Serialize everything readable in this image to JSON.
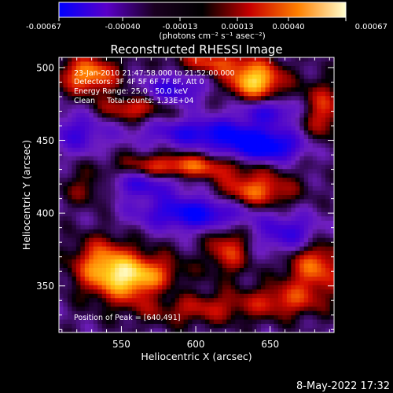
{
  "chart_data": {
    "type": "heatmap",
    "title": "Reconstructed RHESSI Image",
    "xlabel": "Heliocentric X (arcsec)",
    "ylabel": "Heliocentric Y (arcsec)",
    "xlim": [
      508,
      693
    ],
    "ylim": [
      318,
      507
    ],
    "xticks": [
      550,
      600,
      650
    ],
    "yticks": [
      350,
      400,
      450,
      500
    ],
    "colorbar": {
      "ticks": [
        "-0.00067",
        "-0.00040",
        "-0.00013",
        "0.00013",
        "0.00040",
        "0.00067"
      ],
      "unit_label": "(photons cm⁻² s⁻¹ asec⁻²)",
      "stops": [
        "#0000ff",
        "#5a00c8",
        "#1a0020",
        "#000000",
        "#c80000",
        "#ff8000",
        "#ffffd0"
      ]
    },
    "annotations": [
      "23-Jan-2010 21:47:58.000 to 21:52:00.000",
      "Detectors: 3F 4F 5F 6F 7F 8F, Att 0",
      "Energy Range: 25.0 - 50.0 keV",
      "Clean     Total counts: 1.33E+04"
    ],
    "peak_label": "Position of Peak = [640,491]",
    "sources": [
      {
        "x": 560,
        "y": 355,
        "amp": 1.0,
        "sx": 20,
        "sy": 11
      },
      {
        "x": 537,
        "y": 367,
        "amp": 0.6,
        "sx": 14,
        "sy": 12
      },
      {
        "x": 640,
        "y": 491,
        "amp": 1.0,
        "sx": 13,
        "sy": 9
      },
      {
        "x": 610,
        "y": 504,
        "amp": 0.55,
        "sx": 18,
        "sy": 6
      },
      {
        "x": 528,
        "y": 495,
        "amp": 0.8,
        "sx": 14,
        "sy": 9
      },
      {
        "x": 558,
        "y": 472,
        "amp": 0.55,
        "sx": 16,
        "sy": 6
      },
      {
        "x": 685,
        "y": 470,
        "amp": 0.55,
        "sx": 10,
        "sy": 14
      },
      {
        "x": 590,
        "y": 432,
        "amp": 0.7,
        "sx": 28,
        "sy": 6
      },
      {
        "x": 640,
        "y": 415,
        "amp": 0.7,
        "sx": 18,
        "sy": 9
      },
      {
        "x": 622,
        "y": 375,
        "amp": 0.55,
        "sx": 10,
        "sy": 12
      },
      {
        "x": 680,
        "y": 365,
        "amp": 0.7,
        "sx": 14,
        "sy": 14
      },
      {
        "x": 530,
        "y": 418,
        "amp": 0.45,
        "sx": 14,
        "sy": 8
      },
      {
        "x": 600,
        "y": 335,
        "amp": 0.45,
        "sx": 30,
        "sy": 8
      },
      {
        "x": 660,
        "y": 340,
        "amp": 0.45,
        "sx": 18,
        "sy": 8
      },
      {
        "x": 610,
        "y": 455,
        "amp": -0.7,
        "sx": 30,
        "sy": 7
      },
      {
        "x": 645,
        "y": 445,
        "amp": -0.9,
        "sx": 18,
        "sy": 7
      },
      {
        "x": 600,
        "y": 400,
        "amp": -0.8,
        "sx": 26,
        "sy": 8
      },
      {
        "x": 560,
        "y": 420,
        "amp": -0.55,
        "sx": 22,
        "sy": 7
      },
      {
        "x": 665,
        "y": 385,
        "amp": -0.6,
        "sx": 16,
        "sy": 10
      },
      {
        "x": 585,
        "y": 485,
        "amp": -0.55,
        "sx": 14,
        "sy": 8
      },
      {
        "x": 520,
        "y": 455,
        "amp": -0.45,
        "sx": 14,
        "sy": 10
      },
      {
        "x": 650,
        "y": 470,
        "amp": -0.5,
        "sx": 16,
        "sy": 6
      },
      {
        "x": 580,
        "y": 345,
        "amp": -0.35,
        "sx": 14,
        "sy": 8
      }
    ]
  },
  "footer": {
    "timestamp": "8-May-2022 17:32"
  }
}
